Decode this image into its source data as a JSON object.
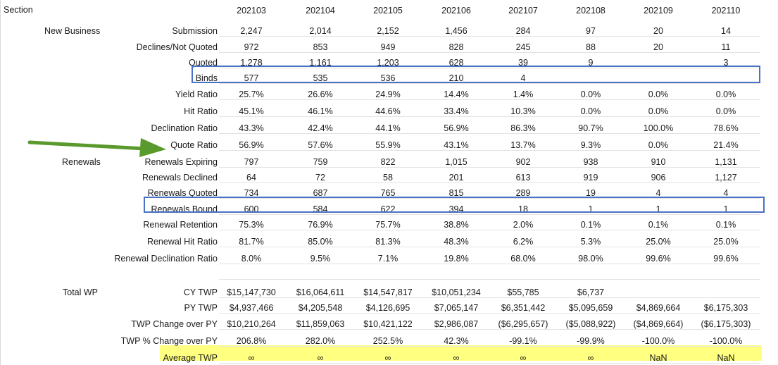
{
  "section_header": "Section",
  "columns": [
    "202103",
    "202104",
    "202105",
    "202106",
    "202107",
    "202108",
    "202109",
    "202110"
  ],
  "groups": [
    {
      "label": "New Business",
      "row": 0
    },
    {
      "label": "Renewals",
      "row": 8
    },
    {
      "label": "Total WP",
      "row": 15
    }
  ],
  "rows": [
    {
      "label": "Submission",
      "values": [
        "2,247",
        "2,014",
        "2,152",
        "1,456",
        "284",
        "97",
        "20",
        "14"
      ]
    },
    {
      "label": "Declines/Not Quoted",
      "values": [
        "972",
        "853",
        "949",
        "828",
        "245",
        "88",
        "20",
        "11"
      ]
    },
    {
      "label": "Quoted",
      "values": [
        "1,278",
        "1,161",
        "1,203",
        "628",
        "39",
        "9",
        "",
        "3"
      ]
    },
    {
      "label": "Binds",
      "values": [
        "577",
        "535",
        "536",
        "210",
        "4",
        "",
        "",
        ""
      ]
    },
    {
      "label": "Yield Ratio",
      "values": [
        "25.7%",
        "26.6%",
        "24.9%",
        "14.4%",
        "1.4%",
        "0.0%",
        "0.0%",
        "0.0%"
      ]
    },
    {
      "label": "Hit Ratio",
      "values": [
        "45.1%",
        "46.1%",
        "44.6%",
        "33.4%",
        "10.3%",
        "0.0%",
        "0.0%",
        "0.0%"
      ]
    },
    {
      "label": "Declination Ratio",
      "values": [
        "43.3%",
        "42.4%",
        "44.1%",
        "56.9%",
        "86.3%",
        "90.7%",
        "100.0%",
        "78.6%"
      ]
    },
    {
      "label": "Quote Ratio",
      "values": [
        "56.9%",
        "57.6%",
        "55.9%",
        "43.1%",
        "13.7%",
        "9.3%",
        "0.0%",
        "21.4%"
      ]
    },
    {
      "label": "Renewals Expiring",
      "values": [
        "797",
        "759",
        "822",
        "1,015",
        "902",
        "938",
        "910",
        "1,131"
      ]
    },
    {
      "label": "Renewals Declined",
      "values": [
        "64",
        "72",
        "58",
        "201",
        "613",
        "919",
        "906",
        "1,127"
      ]
    },
    {
      "label": "Renewals Quoted",
      "values": [
        "734",
        "687",
        "765",
        "815",
        "289",
        "19",
        "4",
        "4"
      ]
    },
    {
      "label": "Renewals Bound",
      "values": [
        "600",
        "584",
        "622",
        "394",
        "18",
        "1",
        "1",
        "1"
      ]
    },
    {
      "label": "Renewal Retention",
      "values": [
        "75.3%",
        "76.9%",
        "75.7%",
        "38.8%",
        "2.0%",
        "0.1%",
        "0.1%",
        "0.1%"
      ]
    },
    {
      "label": "Renewal Hit Ratio",
      "values": [
        "81.7%",
        "85.0%",
        "81.3%",
        "48.3%",
        "6.2%",
        "5.3%",
        "25.0%",
        "25.0%"
      ]
    },
    {
      "label": "Renewal Declination Ratio",
      "values": [
        "8.0%",
        "9.5%",
        "7.1%",
        "19.8%",
        "68.0%",
        "98.0%",
        "99.6%",
        "99.6%"
      ]
    },
    {
      "label": "CY TWP",
      "values": [
        "$15,147,730",
        "$16,064,611",
        "$14,547,817",
        "$10,051,234",
        "$55,785",
        "$6,737",
        "",
        ""
      ]
    },
    {
      "label": "PY TWP",
      "values": [
        "$4,937,466",
        "$4,205,548",
        "$4,126,695",
        "$7,065,147",
        "$6,351,442",
        "$5,095,659",
        "$4,869,664",
        "$6,175,303"
      ]
    },
    {
      "label": "TWP Change over PY",
      "values": [
        "$10,210,264",
        "$11,859,063",
        "$10,421,122",
        "$2,986,087",
        "($6,295,657)",
        "($5,088,922)",
        "($4,869,664)",
        "($6,175,303)"
      ]
    },
    {
      "label": "TWP % Change over PY",
      "values": [
        "206.8%",
        "282.0%",
        "252.5%",
        "42.3%",
        "-99.1%",
        "-99.9%",
        "-100.0%",
        "-100.0%"
      ]
    },
    {
      "label": "Average TWP",
      "values": [
        "∞",
        "∞",
        "∞",
        "∞",
        "∞",
        "∞",
        "NaN",
        "NaN"
      ]
    }
  ],
  "highlight_color": "#ffff80",
  "box_color": "#4a72c4",
  "arrow_color": "#5a9a2c"
}
